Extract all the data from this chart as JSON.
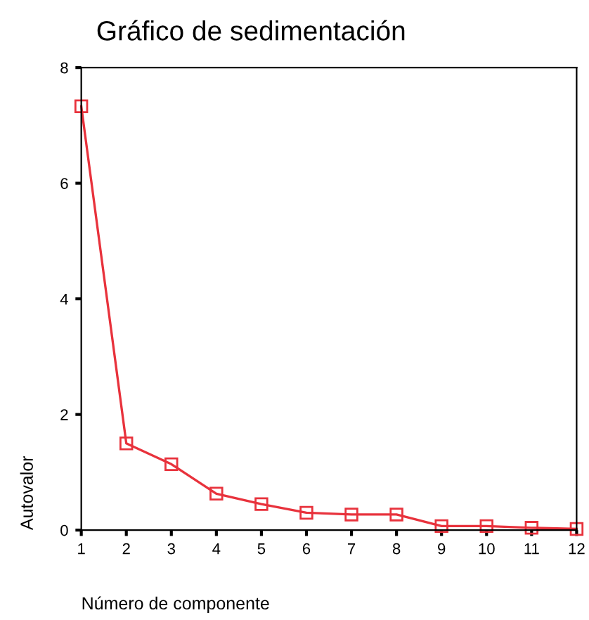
{
  "chart_data": {
    "type": "line",
    "title": "Gráfico de sedimentación",
    "xlabel": "Número de componente",
    "ylabel": "Autovalor",
    "x": [
      1,
      2,
      3,
      4,
      5,
      6,
      7,
      8,
      9,
      10,
      11,
      12
    ],
    "series": [
      {
        "color": "#e8323c",
        "values": [
          7.33,
          1.5,
          1.14,
          0.63,
          0.45,
          0.3,
          0.27,
          0.27,
          0.07,
          0.07,
          0.04,
          0.02
        ]
      }
    ],
    "xlim": [
      1,
      12
    ],
    "xticks": [
      1,
      2,
      3,
      4,
      5,
      6,
      7,
      8,
      9,
      10,
      11,
      12
    ],
    "ylim": [
      0,
      8
    ],
    "yticks": [
      0,
      2,
      4,
      6,
      8
    ],
    "marker": "square",
    "line_style": "solid",
    "grid": false
  }
}
